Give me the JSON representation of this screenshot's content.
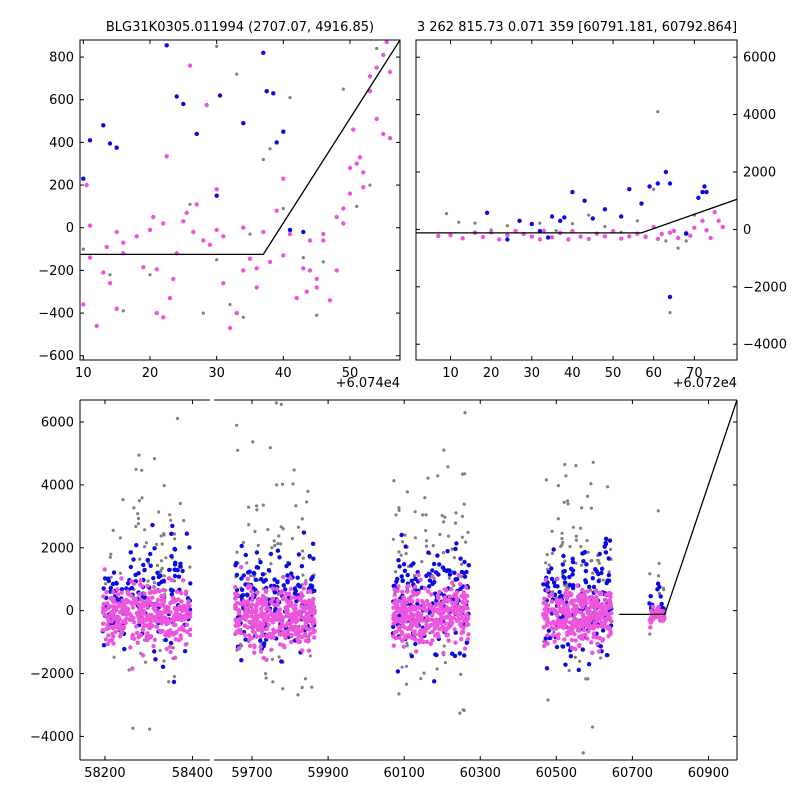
{
  "colors": {
    "gray": "#808080",
    "blue": "#0a0ae6",
    "magenta": "#ee55dd",
    "model": "#000000",
    "frame": "#000000"
  },
  "chart_data": [
    {
      "type": "scatter",
      "title": "BLG31K0305.011994 (2707.07, 4916.85)",
      "x_offset_label": "+6.074e4",
      "xlim": [
        60749.5,
        60797.5
      ],
      "ylim": [
        -620,
        880
      ],
      "xticks": [
        10,
        20,
        30,
        40,
        50
      ],
      "yticks": [
        -600,
        -400,
        -200,
        0,
        200,
        400,
        600,
        800
      ],
      "model_line": [
        [
          60749.5,
          -125
        ],
        [
          60777.0,
          -125
        ],
        [
          60797.5,
          880
        ]
      ],
      "series": [
        {
          "color": "magenta",
          "points": [
            [
              60750,
              -360
            ],
            [
              60750.5,
              200
            ],
            [
              60751,
              -140
            ],
            [
              60751,
              10
            ],
            [
              60752,
              -460
            ],
            [
              60753,
              -210
            ],
            [
              60753.5,
              -90
            ],
            [
              60754,
              -260
            ],
            [
              60755,
              -380
            ],
            [
              60755,
              -20
            ],
            [
              60756,
              -70
            ],
            [
              60756,
              -120
            ],
            [
              60758,
              -40
            ],
            [
              60759,
              -185
            ],
            [
              60760,
              -10
            ],
            [
              60760.5,
              50
            ],
            [
              60761,
              -400
            ],
            [
              60761,
              -195
            ],
            [
              60762,
              -420
            ],
            [
              60762,
              20
            ],
            [
              60762.5,
              335
            ],
            [
              60763,
              -330
            ],
            [
              60763.5,
              -240
            ],
            [
              60764,
              -120
            ],
            [
              60765,
              30
            ],
            [
              60765.5,
              70
            ],
            [
              60766,
              760
            ],
            [
              60766.5,
              -20
            ],
            [
              60767,
              110
            ],
            [
              60768,
              -60
            ],
            [
              60768.5,
              575
            ],
            [
              60769,
              -80
            ],
            [
              60770,
              180
            ],
            [
              60770,
              -10
            ],
            [
              60771,
              -260
            ],
            [
              60771,
              -40
            ],
            [
              60772,
              -470
            ],
            [
              60773,
              -400
            ],
            [
              60774,
              -200
            ],
            [
              60774,
              0
            ],
            [
              60775,
              -145
            ],
            [
              60776,
              -190
            ],
            [
              60776,
              -280
            ],
            [
              60777,
              -20
            ],
            [
              60778,
              -160
            ],
            [
              60779,
              80
            ],
            [
              60780,
              -130
            ],
            [
              60780,
              230
            ],
            [
              60781,
              -30
            ],
            [
              60782,
              -330
            ],
            [
              60783,
              -190
            ],
            [
              60784,
              -60
            ],
            [
              60785,
              -240
            ],
            [
              60785,
              -280
            ],
            [
              60786,
              -30
            ],
            [
              60786,
              -60
            ],
            [
              60787,
              -340
            ],
            [
              60788,
              -200
            ],
            [
              60788,
              50
            ],
            [
              60789,
              90
            ],
            [
              60789,
              20
            ],
            [
              60790,
              280
            ],
            [
              60790,
              160
            ],
            [
              60790.5,
              460
            ],
            [
              60791,
              300
            ],
            [
              60791.5,
              330
            ],
            [
              60792,
              190
            ],
            [
              60792,
              260
            ],
            [
              60793,
              710
            ],
            [
              60793,
              640
            ],
            [
              60794,
              750
            ],
            [
              60794,
              510
            ],
            [
              60795,
              440
            ],
            [
              60795,
              810
            ],
            [
              60795.5,
              870
            ],
            [
              60796,
              730
            ],
            [
              60796,
              420
            ],
            [
              60784,
              -200
            ],
            [
              60783.5,
              -300
            ]
          ]
        },
        {
          "color": "gray",
          "points": [
            [
              60750,
              -100
            ],
            [
              60754,
              -220
            ],
            [
              60756,
              -390
            ],
            [
              60760,
              -220
            ],
            [
              60764,
              -120
            ],
            [
              60766,
              110
            ],
            [
              60768,
              -400
            ],
            [
              60770,
              -150
            ],
            [
              60772,
              -360
            ],
            [
              60773,
              720
            ],
            [
              60775,
              -30
            ],
            [
              60777,
              320
            ],
            [
              60778,
              370
            ],
            [
              60780,
              90
            ],
            [
              60781,
              610
            ],
            [
              60783,
              -140
            ],
            [
              60785,
              -410
            ],
            [
              60786,
              -160
            ],
            [
              60789,
              650
            ],
            [
              60791,
              100
            ],
            [
              60793,
              200
            ],
            [
              60794,
              840
            ],
            [
              60770,
              850
            ],
            [
              60774,
              -420
            ]
          ]
        },
        {
          "color": "blue",
          "points": [
            [
              60750,
              230
            ],
            [
              60751,
              410
            ],
            [
              60753,
              480
            ],
            [
              60754,
              395
            ],
            [
              60755,
              375
            ],
            [
              60762.5,
              855
            ],
            [
              60764,
              615
            ],
            [
              60765,
              580
            ],
            [
              60767,
              440
            ],
            [
              60770,
              150
            ],
            [
              60770.5,
              620
            ],
            [
              60774,
              490
            ],
            [
              60777,
              820
            ],
            [
              60777.5,
              640
            ],
            [
              60778.5,
              630
            ],
            [
              60779,
              400
            ],
            [
              60780,
              450
            ],
            [
              60781,
              -10
            ],
            [
              60783,
              -20
            ]
          ]
        }
      ]
    },
    {
      "type": "scatter",
      "title": "3 262 815.73 0.071 359 [60791.181, 60792.864]",
      "x_offset_label": "+6.072e4",
      "xlim": [
        60721.5,
        60800.5
      ],
      "ylim": [
        -4550,
        6600
      ],
      "xticks": [
        10,
        20,
        30,
        40,
        50,
        60,
        70
      ],
      "yticks": [
        -4000,
        -2000,
        0,
        2000,
        4000,
        6000
      ],
      "model_line": [
        [
          60721.5,
          -120
        ],
        [
          60777.0,
          -120
        ],
        [
          60800.5,
          1050
        ]
      ],
      "series": [
        {
          "color": "magenta",
          "points": [
            [
              60727,
              -230
            ],
            [
              60730,
              -200
            ],
            [
              60733,
              -310
            ],
            [
              60736,
              -110
            ],
            [
              60738,
              -260
            ],
            [
              60740,
              -100
            ],
            [
              60742,
              -350
            ],
            [
              60744,
              -200
            ],
            [
              60746,
              -60
            ],
            [
              60748,
              -160
            ],
            [
              60750,
              -250
            ],
            [
              60752,
              -350
            ],
            [
              60753,
              -50
            ],
            [
              60755,
              -270
            ],
            [
              60757,
              -120
            ],
            [
              60759,
              -350
            ],
            [
              60760,
              -60
            ],
            [
              60762,
              -250
            ],
            [
              60764,
              -330
            ],
            [
              60766,
              -150
            ],
            [
              60768,
              -240
            ],
            [
              60770,
              -60
            ],
            [
              60772,
              -320
            ],
            [
              60774,
              -240
            ],
            [
              60776,
              -150
            ],
            [
              60778,
              -260
            ],
            [
              60780,
              80
            ],
            [
              60782,
              -160
            ],
            [
              60784,
              -110
            ],
            [
              60786,
              -300
            ],
            [
              60788,
              -120
            ],
            [
              60790,
              60
            ],
            [
              60792,
              300
            ],
            [
              60793,
              -30
            ],
            [
              60794,
              -300
            ],
            [
              60795,
              600
            ],
            [
              60796,
              300
            ],
            [
              60797,
              80
            ],
            [
              60789,
              -220
            ],
            [
              60785,
              -50
            ],
            [
              60781,
              -330
            ]
          ]
        },
        {
          "color": "gray",
          "points": [
            [
              60729,
              550
            ],
            [
              60732,
              250
            ],
            [
              60736,
              220
            ],
            [
              60740,
              -20
            ],
            [
              60744,
              130
            ],
            [
              60748,
              -150
            ],
            [
              60752,
              220
            ],
            [
              60756,
              -40
            ],
            [
              60760,
              200
            ],
            [
              60764,
              500
            ],
            [
              60768,
              100
            ],
            [
              60772,
              -100
            ],
            [
              60776,
              300
            ],
            [
              60778,
              -230
            ],
            [
              60780,
              1400
            ],
            [
              60781,
              4100
            ],
            [
              60783,
              -400
            ],
            [
              60784,
              -2900
            ],
            [
              60786,
              -650
            ],
            [
              60788,
              -400
            ],
            [
              60790,
              500
            ]
          ]
        },
        {
          "color": "blue",
          "points": [
            [
              60739,
              580
            ],
            [
              60744,
              -350
            ],
            [
              60747,
              300
            ],
            [
              60750,
              190
            ],
            [
              60752,
              -60
            ],
            [
              60754,
              -280
            ],
            [
              60755,
              450
            ],
            [
              60757,
              300
            ],
            [
              60758,
              420
            ],
            [
              60760,
              1300
            ],
            [
              60763,
              1000
            ],
            [
              60765,
              380
            ],
            [
              60768,
              700
            ],
            [
              60772,
              450
            ],
            [
              60774,
              1400
            ],
            [
              60777,
              900
            ],
            [
              60779,
              1500
            ],
            [
              60781,
              1600
            ],
            [
              60783,
              2000
            ],
            [
              60784,
              1600
            ],
            [
              60784,
              -2350
            ],
            [
              60788,
              -150
            ],
            [
              60791,
              1100
            ],
            [
              60792,
              1300
            ],
            [
              60792.5,
              1500
            ],
            [
              60793,
              1300
            ]
          ]
        }
      ]
    },
    {
      "type": "scatter",
      "title": "",
      "broken_axis": true,
      "xlim": [
        58075,
        60975
      ],
      "ylim": [
        -4750,
        6700
      ],
      "segments": [
        {
          "x": [
            58143,
            58440
          ],
          "ticks": [
            58200,
            58400
          ]
        },
        {
          "x": [
            59600,
            60975
          ],
          "ticks": [
            59700,
            59900,
            60100,
            60300,
            60500,
            60700,
            60900
          ]
        }
      ],
      "yticks": [
        -4000,
        -2000,
        0,
        2000,
        4000,
        6000
      ],
      "model_line": [
        [
          60665,
          -120
        ],
        [
          60785,
          -120
        ],
        [
          60975,
          6700
        ]
      ],
      "clusters": [
        {
          "x_range": [
            58195,
            58395
          ],
          "n_magenta": 340,
          "n_blue": 150,
          "n_gray": 95
        },
        {
          "x_range": [
            59655,
            59865
          ],
          "n_magenta": 360,
          "n_blue": 160,
          "n_gray": 100
        },
        {
          "x_range": [
            60070,
            60270
          ],
          "n_magenta": 340,
          "n_blue": 160,
          "n_gray": 100
        },
        {
          "x_range": [
            60465,
            60645
          ],
          "n_magenta": 320,
          "n_blue": 170,
          "n_gray": 90
        },
        {
          "x_range": [
            60745,
            60785
          ],
          "n_magenta": 45,
          "n_blue": 18,
          "n_gray": 10
        }
      ]
    }
  ]
}
